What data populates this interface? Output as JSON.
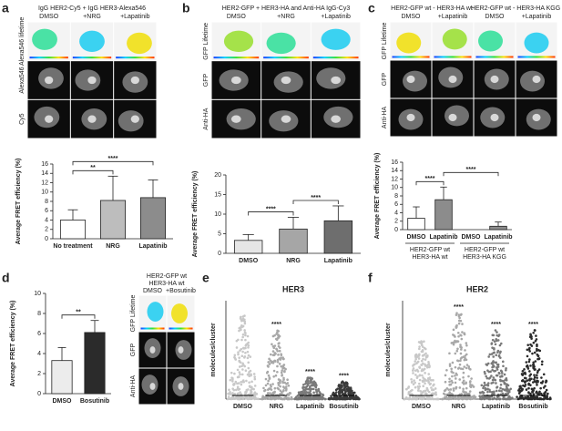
{
  "panel_labels": [
    "a",
    "b",
    "c",
    "d",
    "e",
    "f"
  ],
  "images": [
    {
      "title": [
        "IgG HER2-Cy5 + IgG HER3-Alexa546"
      ],
      "columns": [
        "DMSO",
        "+NRG",
        "+Lapatinib"
      ],
      "rows": [
        "Alexa546 lifetime",
        "Alexa546",
        "Cy5"
      ]
    },
    {
      "title": [
        "HER2-GFP + HER3-HA and Anti-HA IgG-Cy3"
      ],
      "columns": [
        "DMSO",
        "+NRG",
        "+Lapatinib"
      ],
      "rows": [
        "GFP Lifetime",
        "GFP",
        "Anti-HA"
      ]
    },
    {
      "title": [
        "HER2-GFP wt - HER3-HA wt",
        "HER2-GFP wt - HER3-HA KGG"
      ],
      "columns": [
        "DMSO",
        "+Lapatinib",
        "DMSO",
        "+Lapatinib"
      ],
      "rows": [
        "GFP Lifetime",
        "GFP",
        "Anti-HA"
      ]
    },
    {
      "title": [
        "HER2-GFP wt",
        "HER3-HA wt"
      ],
      "columns": [
        "DMSO",
        "+Bosutinib"
      ],
      "rows": [
        "GFP Lifetime",
        "GFP",
        "Anti-HA"
      ]
    }
  ],
  "chart_data": [
    {
      "type": "bar",
      "ylabel": "Average FRET efficiency (%)",
      "categories": [
        "No treatment",
        "NRG",
        "Lapatinib"
      ],
      "values": [
        4,
        8.2,
        8.8
      ],
      "errors": [
        2.2,
        5.2,
        3.8
      ],
      "colors": [
        "#ffffff",
        "#bdbdbd",
        "#8c8c8c"
      ],
      "ylim": [
        0,
        16
      ],
      "yticks": [
        0,
        2,
        4,
        6,
        8,
        10,
        12,
        14,
        16
      ],
      "significance": [
        {
          "from": 0,
          "to": 1,
          "label": "**"
        },
        {
          "from": 0,
          "to": 2,
          "label": "****"
        }
      ]
    },
    {
      "type": "bar",
      "ylabel": "Average FRET efficiency (%)",
      "categories": [
        "DMSO",
        "NRG",
        "Lapatinib"
      ],
      "values": [
        3.3,
        6.2,
        8.3
      ],
      "errors": [
        1.5,
        3.0,
        3.8
      ],
      "colors": [
        "#e6e6e6",
        "#a6a6a6",
        "#6e6e6e"
      ],
      "ylim": [
        0,
        20
      ],
      "yticks": [
        0,
        5,
        10,
        15,
        20
      ],
      "significance": [
        {
          "from": 0,
          "to": 1,
          "label": "****"
        },
        {
          "from": 1,
          "to": 2,
          "label": "****"
        }
      ]
    },
    {
      "type": "bar",
      "ylabel": "Average FRET efficiency (%)",
      "categories": [
        "DMSO",
        "Lapatinib",
        "DMSO",
        "Lapatinib"
      ],
      "values": [
        2.7,
        7.1,
        0,
        0.8
      ],
      "errors": [
        2.7,
        3.0,
        0,
        1.0
      ],
      "colors": [
        "#ffffff",
        "#8c8c8c",
        "#ffffff",
        "#8c8c8c"
      ],
      "ylim": [
        0,
        16
      ],
      "yticks": [
        0,
        2,
        4,
        6,
        8,
        10,
        12,
        14,
        16
      ],
      "groups": [
        [
          "HER2-GFP wt",
          "HER3-HA wt"
        ],
        [
          "HER2-GFP wt",
          "HER3-HA KGG"
        ]
      ],
      "significance": [
        {
          "from": 0,
          "to": 1,
          "label": "****"
        },
        {
          "from": 1,
          "to": 3,
          "label": "****"
        }
      ]
    },
    {
      "type": "bar",
      "ylabel": "Average FRET efficiency (%)",
      "categories": [
        "DMSO",
        "Bosutinib"
      ],
      "values": [
        3.3,
        6.1
      ],
      "errors": [
        1.3,
        1.2
      ],
      "colors": [
        "#ececec",
        "#2b2b2b"
      ],
      "ylim": [
        0,
        10
      ],
      "yticks": [
        0,
        2,
        4,
        6,
        8,
        10
      ],
      "significance": [
        {
          "from": 0,
          "to": 1,
          "label": "**"
        }
      ]
    },
    {
      "type": "strip",
      "title": "HER3",
      "ylabel": "molecules/cluster",
      "categories": [
        "DMSO",
        "NRG",
        "Lapatinib",
        "Bosutinib"
      ],
      "values": [
        85,
        70,
        22,
        18
      ],
      "ylim": [
        0,
        100
      ],
      "colors": [
        "#c8c8c8",
        "#a8a8a8",
        "#7a7a7a",
        "#3a3a3a"
      ],
      "significance": [
        null,
        "****",
        "****",
        "****"
      ]
    },
    {
      "type": "strip",
      "title": "HER2",
      "ylabel": "molecules/cluster",
      "categories": [
        "DMSO",
        "NRG",
        "Lapatinib",
        "Bosutinib"
      ],
      "values": [
        60,
        88,
        70,
        70
      ],
      "ylim": [
        0,
        100
      ],
      "colors": [
        "#c8c8c8",
        "#a8a8a8",
        "#7a7a7a",
        "#2a2a2a"
      ],
      "significance": [
        null,
        "****",
        "****",
        "****"
      ]
    }
  ]
}
